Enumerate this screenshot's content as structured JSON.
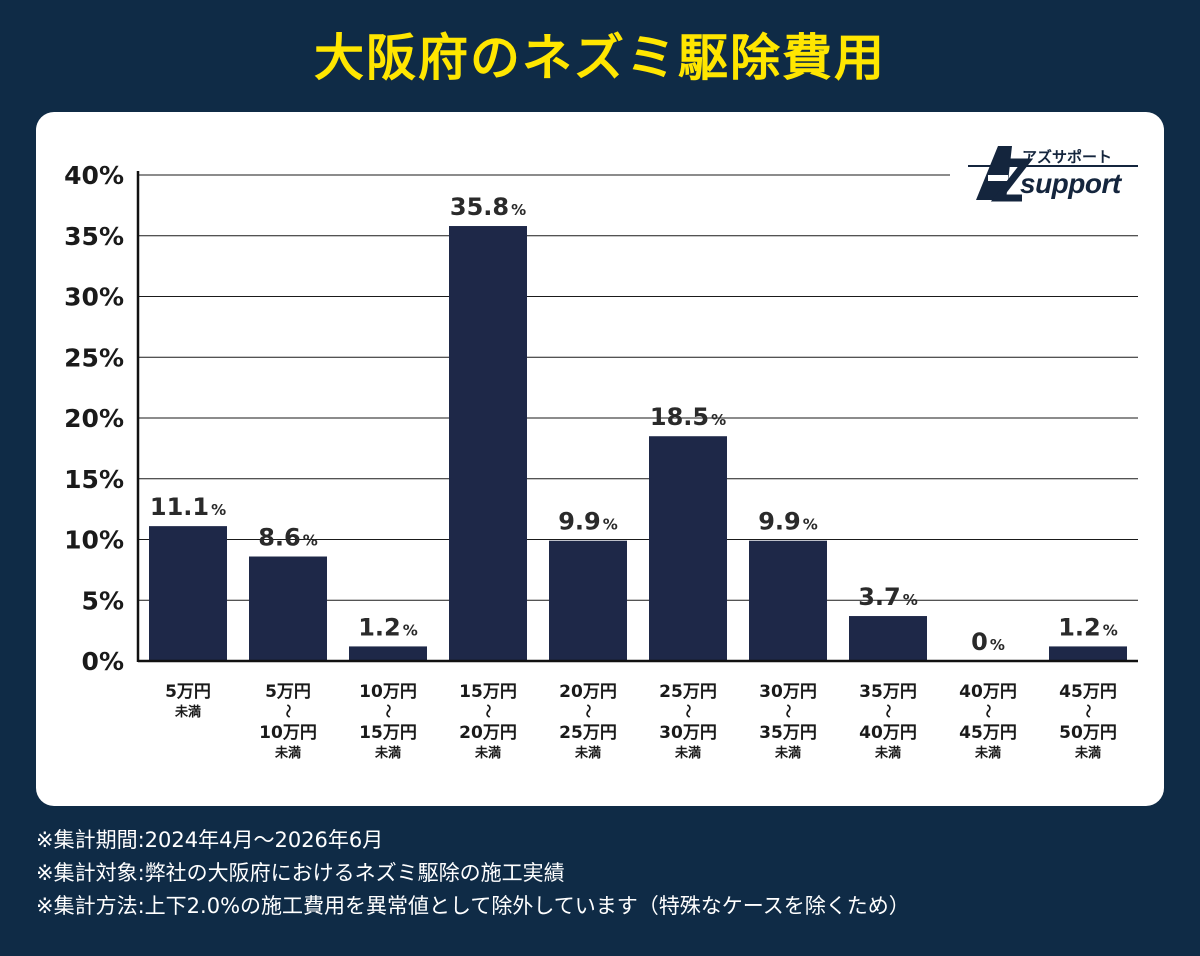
{
  "title": "大阪府のネズミ駆除費用",
  "logo": {
    "jp": "アズサポート",
    "en": "support"
  },
  "colors": {
    "background": "#0f2b46",
    "title": "#ffe600",
    "bar": "#1e2848",
    "grid": "#1a1a1a"
  },
  "chart_data": {
    "type": "bar",
    "ylim": [
      0,
      40
    ],
    "yticks": [
      "0%",
      "5%",
      "10%",
      "15%",
      "20%",
      "25%",
      "30%",
      "35%",
      "40%"
    ],
    "grid": true,
    "categories": [
      {
        "lines": [
          "5万円"
        ],
        "suffix": "未満"
      },
      {
        "lines": [
          "5万円",
          "〜",
          "10万円"
        ],
        "suffix": "未満"
      },
      {
        "lines": [
          "10万円",
          "〜",
          "15万円"
        ],
        "suffix": "未満"
      },
      {
        "lines": [
          "15万円",
          "〜",
          "20万円"
        ],
        "suffix": "未満"
      },
      {
        "lines": [
          "20万円",
          "〜",
          "25万円"
        ],
        "suffix": "未満"
      },
      {
        "lines": [
          "25万円",
          "〜",
          "30万円"
        ],
        "suffix": "未満"
      },
      {
        "lines": [
          "30万円",
          "〜",
          "35万円"
        ],
        "suffix": "未満"
      },
      {
        "lines": [
          "35万円",
          "〜",
          "40万円"
        ],
        "suffix": "未満"
      },
      {
        "lines": [
          "40万円",
          "〜",
          "45万円"
        ],
        "suffix": "未満"
      },
      {
        "lines": [
          "45万円",
          "〜",
          "50万円"
        ],
        "suffix": "未満"
      }
    ],
    "values": [
      11.1,
      8.6,
      1.2,
      35.8,
      9.9,
      18.5,
      9.9,
      3.7,
      0,
      1.2
    ],
    "value_labels": [
      "11.1",
      "8.6",
      "1.2",
      "35.8",
      "9.9",
      "18.5",
      "9.9",
      "3.7",
      "0",
      "1.2"
    ],
    "value_unit": "%"
  },
  "notes": [
    "※集計期間:2024年4月〜2026年6月",
    "※集計対象:弊社の大阪府におけるネズミ駆除の施工実績",
    "※集計方法:上下2.0%の施工費用を異常値として除外しています（特殊なケースを除くため）"
  ]
}
